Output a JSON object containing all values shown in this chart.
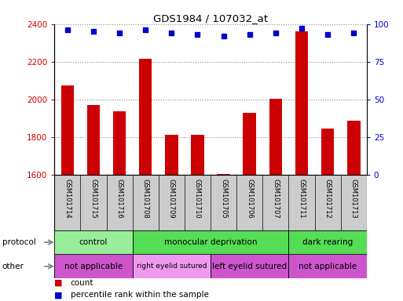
{
  "title": "GDS1984 / 107032_at",
  "samples": [
    "GSM101714",
    "GSM101715",
    "GSM101716",
    "GSM101708",
    "GSM101709",
    "GSM101710",
    "GSM101705",
    "GSM101706",
    "GSM101707",
    "GSM101711",
    "GSM101712",
    "GSM101713"
  ],
  "counts": [
    2075,
    1970,
    1935,
    2215,
    1810,
    1810,
    1605,
    1930,
    2005,
    2360,
    1845,
    1885
  ],
  "percentile_ranks": [
    96,
    95,
    94,
    96,
    94,
    93,
    92,
    93,
    94,
    97,
    93,
    94
  ],
  "ylim_left": [
    1600,
    2400
  ],
  "ylim_right": [
    0,
    100
  ],
  "yticks_left": [
    1600,
    1800,
    2000,
    2200,
    2400
  ],
  "yticks_right": [
    0,
    25,
    50,
    75,
    100
  ],
  "bar_color": "#cc0000",
  "dot_color": "#0000cc",
  "bar_width": 0.5,
  "protocol_groups": [
    {
      "label": "control",
      "start": 0,
      "end": 3,
      "color": "#99ee99"
    },
    {
      "label": "monocular deprivation",
      "start": 3,
      "end": 9,
      "color": "#55dd55"
    },
    {
      "label": "dark rearing",
      "start": 9,
      "end": 12,
      "color": "#55dd55"
    }
  ],
  "other_groups": [
    {
      "label": "not applicable",
      "start": 0,
      "end": 3,
      "color": "#cc55cc"
    },
    {
      "label": "right eyelid sutured",
      "start": 3,
      "end": 6,
      "color": "#ee99ee"
    },
    {
      "label": "left eyelid sutured",
      "start": 6,
      "end": 9,
      "color": "#cc55cc"
    },
    {
      "label": "not applicable",
      "start": 9,
      "end": 12,
      "color": "#cc55cc"
    }
  ],
  "legend_count_label": "count",
  "legend_pct_label": "percentile rank within the sample",
  "protocol_label": "protocol",
  "other_label": "other",
  "tick_label_color_left": "#cc0000",
  "tick_label_color_right": "#0000cc",
  "grid_color": "#888888",
  "background_color": "#ffffff",
  "xticklabel_bg": "#cccccc"
}
